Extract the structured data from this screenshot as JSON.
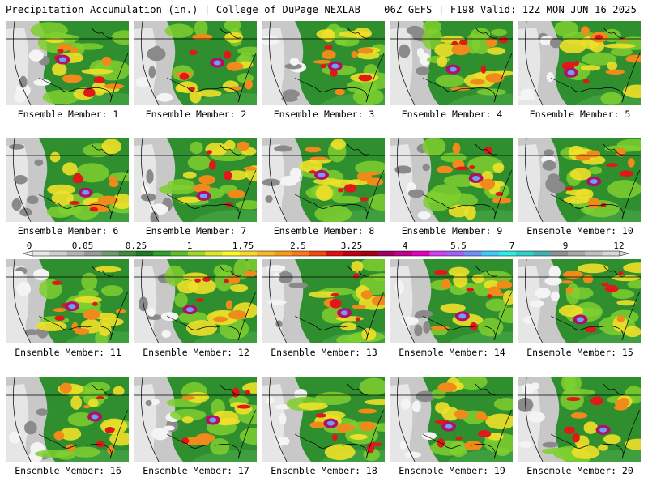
{
  "header": {
    "left": "Precipitation Accumulation (in.) | College of DuPage NEXLAB",
    "right": "06Z GEFS | F198 Valid: 12Z MON JUN 16 2025"
  },
  "colorbar": {
    "labels": [
      "0",
      "0.05",
      "0.25",
      "1",
      "1.75",
      "2.5",
      "3.25",
      "4",
      "5.5",
      "7",
      "9",
      "12"
    ],
    "colors": [
      "#e8e8e8",
      "#cfcfcf",
      "#b4b4b4",
      "#9a9a9a",
      "#6f9a6f",
      "#3f8a3f",
      "#1f7a1f",
      "#2f9f2f",
      "#5cbf2a",
      "#9fd62a",
      "#d8e82a",
      "#f8f82a",
      "#f8d82a",
      "#f8b82a",
      "#f89a1a",
      "#f8781a",
      "#f04a10",
      "#e01010",
      "#c00010",
      "#a00010",
      "#a00060",
      "#c00090",
      "#e000c0",
      "#d040f0",
      "#a060f8",
      "#7090f8",
      "#40c8f8",
      "#30e8e8",
      "#30d0c8",
      "#40b0b0",
      "#909090",
      "#a8a8a8",
      "#c0c0c0",
      "#d8d8d8"
    ]
  },
  "members": [
    {
      "label": "Ensemble Member: 1"
    },
    {
      "label": "Ensemble Member: 2"
    },
    {
      "label": "Ensemble Member: 3"
    },
    {
      "label": "Ensemble Member: 4"
    },
    {
      "label": "Ensemble Member: 5"
    },
    {
      "label": "Ensemble Member: 6"
    },
    {
      "label": "Ensemble Member: 7"
    },
    {
      "label": "Ensemble Member: 8"
    },
    {
      "label": "Ensemble Member: 9"
    },
    {
      "label": "Ensemble Member: 10"
    },
    {
      "label": "Ensemble Member: 11"
    },
    {
      "label": "Ensemble Member: 12"
    },
    {
      "label": "Ensemble Member: 13"
    },
    {
      "label": "Ensemble Member: 14"
    },
    {
      "label": "Ensemble Member: 15"
    },
    {
      "label": "Ensemble Member: 16"
    },
    {
      "label": "Ensemble Member: 17"
    },
    {
      "label": "Ensemble Member: 18"
    },
    {
      "label": "Ensemble Member: 19"
    },
    {
      "label": "Ensemble Member: 20"
    }
  ]
}
